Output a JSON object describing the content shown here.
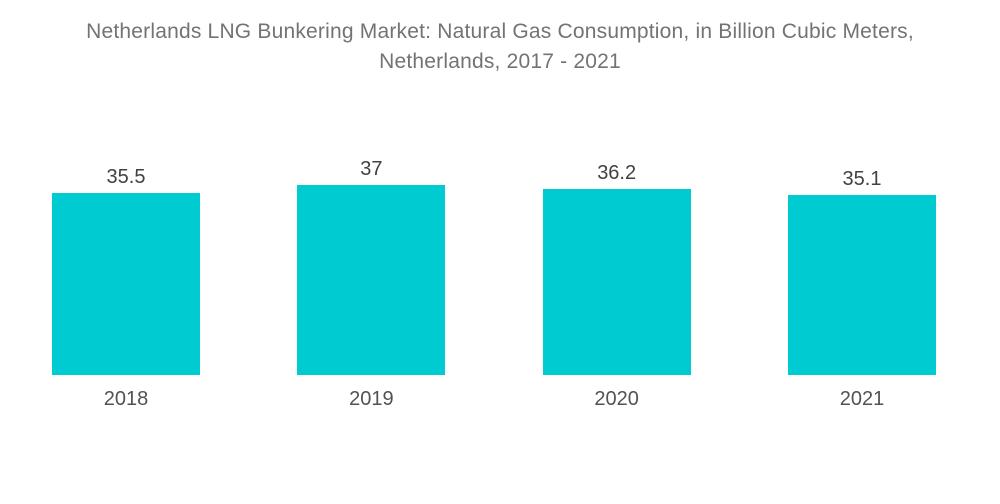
{
  "colors": {
    "bar": "#00CBD1",
    "title_text": "#737373",
    "value_text": "#414141",
    "axis_text": "#525252",
    "background": "#FFFFFF"
  },
  "chart_data": {
    "type": "bar",
    "title": "Netherlands LNG Bunkering Market: Natural Gas Consumption, in Billion Cubic Meters, Netherlands, 2017 - 2021",
    "title_lines": [
      "Netherlands LNG Bunkering Market: Natural Gas Consumption, in Billion Cubic Meters,",
      "Netherlands, 2017 - 2021"
    ],
    "categories": [
      "2018",
      "2019",
      "2020",
      "2021"
    ],
    "values": [
      35.5,
      37,
      36.2,
      35.1
    ],
    "value_labels": [
      "35.5",
      "37",
      "36.2",
      "35.1"
    ],
    "xlabel": "",
    "ylabel": "",
    "ylim": [
      0,
      37
    ],
    "grid": false,
    "legend": false,
    "axes_visible": false,
    "bar_color": "#00CBD1"
  }
}
